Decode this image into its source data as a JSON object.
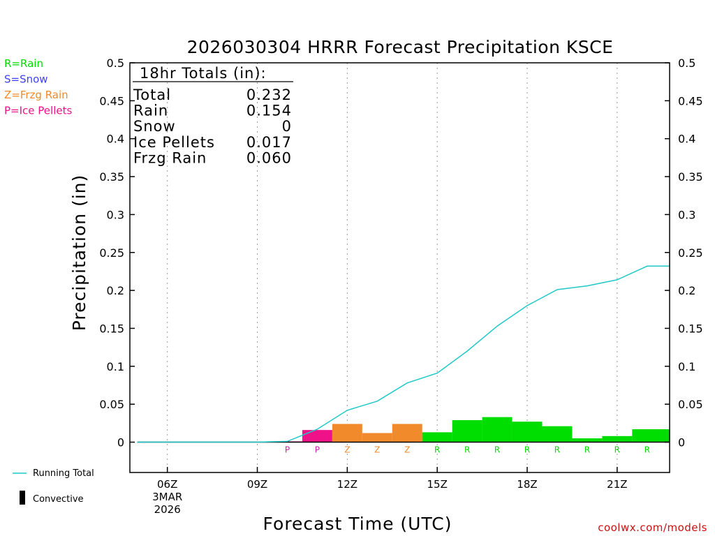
{
  "chart_data": {
    "type": "bar",
    "title": "2026030304 HRRR Forecast Precipitation KSCE",
    "ylabel": "Precipitation (in)",
    "xlabel": "Forecast Time (UTC)",
    "ylim": [
      -0.04,
      0.5
    ],
    "xlim": [
      4.75,
      22.75
    ],
    "yticks": [
      {
        "v": 0,
        "label": "0"
      },
      {
        "v": 0.05,
        "label": "0.05"
      },
      {
        "v": 0.1,
        "label": "0.1"
      },
      {
        "v": 0.15,
        "label": "0.15"
      },
      {
        "v": 0.2,
        "label": "0.2"
      },
      {
        "v": 0.25,
        "label": "0.25"
      },
      {
        "v": 0.3,
        "label": "0.3"
      },
      {
        "v": 0.35,
        "label": "0.35"
      },
      {
        "v": 0.4,
        "label": "0.4"
      },
      {
        "v": 0.45,
        "label": "0.45"
      },
      {
        "v": 0.5,
        "label": "0.5"
      }
    ],
    "xticks": [
      {
        "v": 6,
        "label": "06Z"
      },
      {
        "v": 9,
        "label": "09Z"
      },
      {
        "v": 12,
        "label": "12Z"
      },
      {
        "v": 15,
        "label": "15Z"
      },
      {
        "v": 18,
        "label": "18Z"
      },
      {
        "v": 21,
        "label": "21Z"
      }
    ],
    "date_label": [
      "3MAR",
      "2026"
    ],
    "bars": [
      {
        "start": 10,
        "end": 11,
        "value": 0.001,
        "type": "P"
      },
      {
        "start": 10.5,
        "end": 11.5,
        "value": 0.016,
        "type": "P"
      },
      {
        "start": 11.5,
        "end": 12.5,
        "value": 0.024,
        "type": "Z"
      },
      {
        "start": 12.5,
        "end": 13.5,
        "value": 0.012,
        "type": "Z"
      },
      {
        "start": 13.5,
        "end": 14.5,
        "value": 0.024,
        "type": "Z"
      },
      {
        "start": 14.5,
        "end": 15.5,
        "value": 0.013,
        "type": "R"
      },
      {
        "start": 15.5,
        "end": 16.5,
        "value": 0.029,
        "type": "R"
      },
      {
        "start": 16.5,
        "end": 17.5,
        "value": 0.033,
        "type": "R"
      },
      {
        "start": 17.5,
        "end": 18.5,
        "value": 0.027,
        "type": "R"
      },
      {
        "start": 18.5,
        "end": 19.5,
        "value": 0.021,
        "type": "R"
      },
      {
        "start": 19.5,
        "end": 20.5,
        "value": 0.005,
        "type": "R"
      },
      {
        "start": 20.5,
        "end": 21.5,
        "value": 0.008,
        "type": "R"
      },
      {
        "start": 21.5,
        "end": 22.75,
        "value": 0.017,
        "type": "R"
      }
    ],
    "type_labels": [
      {
        "x": 10,
        "type": "P"
      },
      {
        "x": 11,
        "type": "P"
      },
      {
        "x": 12,
        "type": "Z"
      },
      {
        "x": 13,
        "type": "Z"
      },
      {
        "x": 14,
        "type": "Z"
      },
      {
        "x": 15,
        "type": "R"
      },
      {
        "x": 16,
        "type": "R"
      },
      {
        "x": 17,
        "type": "R"
      },
      {
        "x": 18,
        "type": "R"
      },
      {
        "x": 19,
        "type": "R"
      },
      {
        "x": 20,
        "type": "R"
      },
      {
        "x": 21,
        "type": "R"
      },
      {
        "x": 22,
        "type": "R"
      }
    ],
    "running_total": {
      "name": "Running Total",
      "x": [
        5,
        6,
        7,
        8,
        9,
        10,
        11,
        12,
        13,
        14,
        15,
        16,
        17,
        18,
        19,
        20,
        21,
        22,
        22.75
      ],
      "y": [
        0,
        0,
        0,
        0,
        0,
        0.001,
        0.017,
        0.042,
        0.054,
        0.078,
        0.091,
        0.12,
        0.153,
        0.18,
        0.201,
        0.206,
        0.214,
        0.232,
        0.232
      ]
    },
    "convective": {
      "name": "Convective",
      "values": [
        0,
        0,
        0,
        0,
        0,
        0,
        0,
        0,
        0,
        0,
        0,
        0,
        0,
        0,
        0,
        0,
        0,
        0
      ]
    },
    "totals_box": {
      "title": "18hr Totals (in):",
      "rows": [
        {
          "label": "Total",
          "value": "0.232"
        },
        {
          "label": "Rain",
          "value": "0.154"
        },
        {
          "label": "Snow",
          "value": "0"
        },
        {
          "label": "Ice Pellets",
          "value": "0.017"
        },
        {
          "label": "Frzg Rain",
          "value": "0.060"
        }
      ]
    },
    "legend": {
      "types": [
        {
          "key": "R",
          "text": "R=Rain",
          "color": "#00dd00"
        },
        {
          "key": "S",
          "text": "S=Snow",
          "color": "#4040ff"
        },
        {
          "key": "Z",
          "text": "Z=Frzg Rain",
          "color": "#f08a2a"
        },
        {
          "key": "P",
          "text": "P=Ice Pellets",
          "color": "#ee1188"
        }
      ],
      "running_total_label": "Running Total",
      "convective_label": "Convective"
    },
    "colors": {
      "R": "#00dd00",
      "Z": "#f08a2a",
      "P": "#ee1188",
      "S": "#4040ff",
      "P_label": "#cc22aa",
      "running_total": "#20c8c8",
      "grid": "#999999"
    },
    "credit": "coolwx.com/models"
  }
}
